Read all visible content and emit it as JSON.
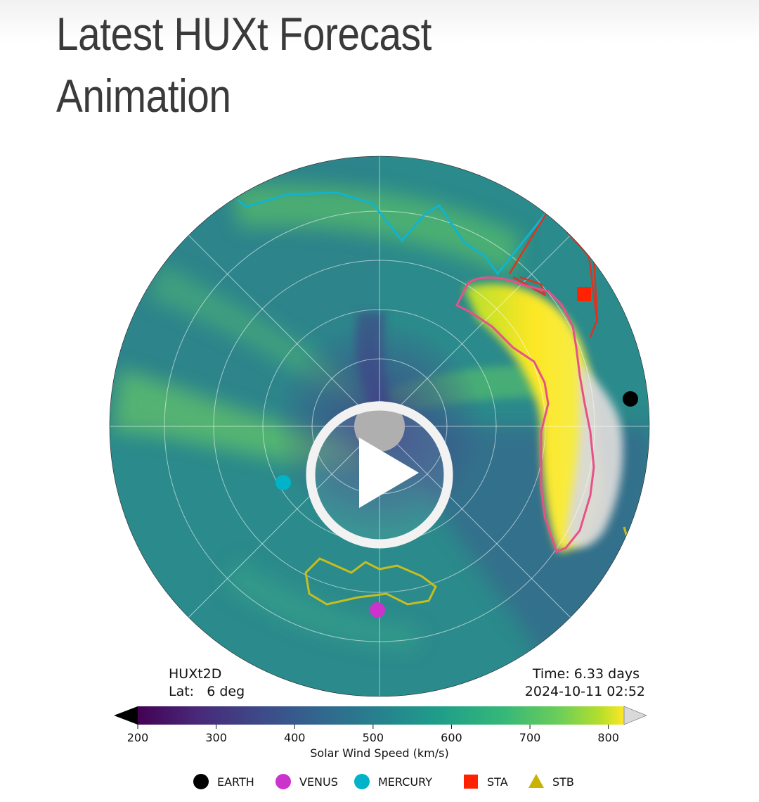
{
  "page": {
    "title": "Latest HUXt Forecast Animation"
  },
  "video": {
    "play_button_icon": "play-icon",
    "frame": {
      "model_label": "HUXt2D",
      "lat_label": "Lat:   6 deg",
      "time_label": "Time: 6.33 days",
      "date_label": "2024-10-11 02:52"
    }
  },
  "colorbar": {
    "label": "Solar Wind Speed (km/s)",
    "ticks": [
      200,
      300,
      400,
      500,
      600,
      700,
      800
    ],
    "range": [
      200,
      820
    ],
    "underflow_color": "#000000",
    "overflow_color": "#d9d9d9"
  },
  "legend": {
    "items": [
      {
        "label": "EARTH",
        "marker": "circle",
        "color": "#000000"
      },
      {
        "label": "VENUS",
        "marker": "circle",
        "color": "#cc33cc"
      },
      {
        "label": "MERCURY",
        "marker": "circle",
        "color": "#00b3c8"
      },
      {
        "label": "STA",
        "marker": "square",
        "color": "#ff2200"
      },
      {
        "label": "STB",
        "marker": "triangle",
        "color": "#c8b400"
      }
    ]
  }
}
